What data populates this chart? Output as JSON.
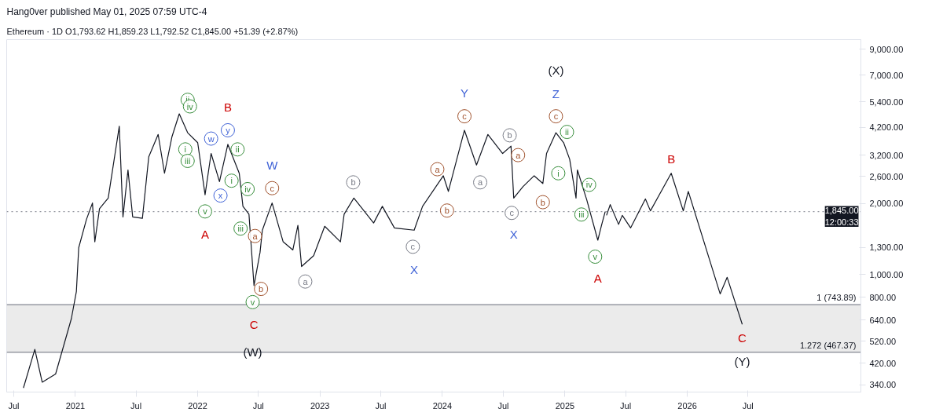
{
  "chart_data": {
    "type": "line",
    "title": "Hang0ver published May 01, 2025 07:59 UTC-4",
    "subtitle": "Ethereum · 1D  O1,793.62  H1,859.23  L1,792.52  C1,845.00  +51.39 (+2.87%)",
    "series": [
      {
        "color": "#131722",
        "x": [
          "2020-07-30",
          "2020-09-02",
          "2020-09-24",
          "2020-11-03",
          "2020-12-20",
          "2021-01-04",
          "2021-01-11",
          "2021-02-03",
          "2021-02-21",
          "2021-02-28",
          "2021-03-14",
          "2021-04-09",
          "2021-05-12",
          "2021-05-23",
          "2021-06-07",
          "2021-06-21",
          "2021-07-20",
          "2021-08-08",
          "2021-09-05",
          "2021-09-24",
          "2021-10-16",
          "2021-11-07",
          "2021-12-02",
          "2022-01-01",
          "2022-01-23",
          "2022-02-10",
          "2022-03-07",
          "2022-04-01",
          "2022-05-05",
          "2022-05-16",
          "2022-06-03",
          "2022-06-18",
          "2022-07-06",
          "2022-07-13",
          "2022-08-11",
          "2022-09-13",
          "2022-10-12",
          "2022-10-27",
          "2022-11-07",
          "2022-12-13",
          "2023-01-15",
          "2023-03-03",
          "2023-03-14",
          "2023-04-12",
          "2023-06-10",
          "2023-07-06",
          "2023-08-11",
          "2023-10-09",
          "2023-11-03",
          "2024-01-04",
          "2024-01-19",
          "2024-03-07",
          "2024-04-12",
          "2024-05-16",
          "2024-06-29",
          "2024-07-24",
          "2024-08-01",
          "2024-08-29",
          "2024-10-01",
          "2024-10-27",
          "2024-11-07",
          "2024-12-05",
          "2024-12-28",
          "2025-01-15",
          "2025-02-03",
          "2025-02-07",
          "2025-03-07",
          "2025-04-09",
          "2025-04-20",
          "2025-05-01"
        ],
        "values": [
          330,
          481,
          349,
          378,
          649,
          847,
          1299,
          1710,
          2008,
          1375,
          1900,
          2108,
          4250,
          1753,
          2773,
          1753,
          1730,
          3155,
          3923,
          2685,
          3827,
          4798,
          3990,
          3620,
          2177,
          3258,
          2476,
          3561,
          2685,
          1944,
          1800,
          897,
          1239,
          1540,
          2008,
          1375,
          1270,
          1614,
          1080,
          1200,
          1600,
          1375,
          1800,
          2108,
          1652,
          1944,
          1575,
          1540,
          1944,
          2620,
          2250,
          4086,
          2910,
          3923,
          3258,
          3500,
          2108,
          2360,
          2620,
          2430,
          3258,
          3990,
          3620,
          3080,
          2108,
          2773,
          2070,
          1397,
          1614,
          1845
        ]
      },
      {
        "color": "#131722",
        "x": [
          "2025-05-05",
          "2025-05-16",
          "2025-06-10",
          "2025-06-21",
          "2025-07-16",
          "2025-08-29",
          "2025-09-13",
          "2025-11-14",
          "2025-12-20",
          "2026-01-04",
          "2026-04-09",
          "2026-04-30",
          "2026-06-14"
        ],
        "values": [
          1780,
          1977,
          1630,
          1780,
          1575,
          2090,
          1860,
          2685,
          1860,
          2250,
          827,
          972,
          614
        ]
      }
    ],
    "xlim": [
      "2020-06-10",
      "2027-06-03"
    ],
    "xticks": [
      {
        "value": "2020-07-01",
        "label": "Jul"
      },
      {
        "value": "2021-01-01",
        "label": "2021"
      },
      {
        "value": "2021-07-01",
        "label": "Jul"
      },
      {
        "value": "2022-01-01",
        "label": "2022"
      },
      {
        "value": "2022-07-01",
        "label": "Jul"
      },
      {
        "value": "2023-01-01",
        "label": "2023"
      },
      {
        "value": "2023-07-01",
        "label": "Jul"
      },
      {
        "value": "2024-01-01",
        "label": "2024"
      },
      {
        "value": "2024-07-01",
        "label": "Jul"
      },
      {
        "value": "2025-01-01",
        "label": "2025"
      },
      {
        "value": "2025-07-01",
        "label": "Jul"
      },
      {
        "value": "2026-01-01",
        "label": "2026"
      },
      {
        "value": "2026-07-01",
        "label": "Jul"
      }
    ],
    "ylim": [
      317,
      9900
    ],
    "yticks": [
      {
        "value": 340,
        "label": "340.00"
      },
      {
        "value": 420,
        "label": "420.00"
      },
      {
        "value": 520,
        "label": "520.00"
      },
      {
        "value": 640,
        "label": "640.00"
      },
      {
        "value": 800,
        "label": "800.00"
      },
      {
        "value": 1000,
        "label": "1,000.00"
      },
      {
        "value": 1300,
        "label": "1,300.00"
      },
      {
        "value": 2000,
        "label": "2,000.00"
      },
      {
        "value": 2600,
        "label": "2,600.00"
      },
      {
        "value": 3200,
        "label": "3,200.00"
      },
      {
        "value": 4200,
        "label": "4,200.00"
      },
      {
        "value": 5400,
        "label": "5,400.00"
      },
      {
        "value": 7000,
        "label": "7,000.00"
      },
      {
        "value": 9000,
        "label": "9,000.00"
      }
    ],
    "log": "y",
    "line_style": "solid",
    "marker": "none",
    "ref_lines": [
      {
        "axis": "y",
        "value": 1845,
        "label": "1,845.00",
        "color": "#787b86",
        "line_style": "dotted"
      },
      {
        "axis": "y",
        "value": 743.89,
        "label": "1 (743.89)",
        "color": "#9598a1",
        "line_style": "solid"
      },
      {
        "axis": "y",
        "value": 467.37,
        "label": "1.272 (467.37)",
        "color": "#9598a1",
        "line_style": "solid"
      }
    ],
    "bands": [
      {
        "axis": "y",
        "from": 467.37,
        "to": 743.89,
        "color": "#ebebeb"
      }
    ],
    "annotations": [
      "12:00:33",
      {
        "text": "ii",
        "x": "2021-12-02",
        "y": 5500
      },
      {
        "text": "iv",
        "x": "2021-12-09",
        "y": 5160
      },
      {
        "text": "B",
        "x": "2022-04-01",
        "y": 3561
      },
      {
        "text": "w",
        "x": "2022-02-10",
        "y": 3767
      },
      {
        "text": "y",
        "x": "2022-04-01",
        "y": 4086
      },
      {
        "text": "i",
        "x": "2021-11-25",
        "y": 3390
      },
      {
        "text": "iii",
        "x": "2021-12-02",
        "y": 3030
      },
      {
        "text": "ii",
        "x": "2022-04-30",
        "y": 3390
      },
      {
        "text": "i",
        "x": "2022-04-12",
        "y": 2497
      },
      {
        "text": "x",
        "x": "2022-03-10",
        "y": 2160
      },
      {
        "text": "iv",
        "x": "2022-05-30",
        "y": 2300
      },
      {
        "text": "W",
        "x": "2022-08-11",
        "y": 2008
      },
      {
        "text": "c",
        "x": "2022-08-11",
        "y": 2322
      },
      {
        "text": "v",
        "x": "2022-01-23",
        "y": 1850
      },
      {
        "text": "A",
        "x": "2022-01-23",
        "y": 2177
      },
      {
        "text": "iii",
        "x": "2022-05-09",
        "y": 1565
      },
      {
        "text": "a",
        "x": "2022-06-21",
        "y": 1455
      },
      {
        "text": "b",
        "x": "2022-07-09",
        "y": 868
      },
      {
        "text": "v",
        "x": "2022-06-14",
        "y": 763
      },
      {
        "text": "C",
        "x": "2022-06-18",
        "y": 897
      },
      {
        "text": "(W)",
        "x": "2022-06-14",
        "y": 470
      },
      {
        "text": "a",
        "x": "2022-11-18",
        "y": 933
      },
      {
        "text": "b",
        "x": "2023-04-10",
        "y": 2457
      },
      {
        "text": "c",
        "x": "2023-10-05",
        "y": 1310
      },
      {
        "text": "X",
        "x": "2023-10-09",
        "y": 1540
      },
      {
        "text": "a",
        "x": "2023-12-17",
        "y": 2793
      },
      {
        "text": "b",
        "x": "2024-01-15",
        "y": 1866
      },
      {
        "text": "Y",
        "x": "2024-03-07",
        "y": 4086
      },
      {
        "text": "c",
        "x": "2024-03-07",
        "y": 4684
      },
      {
        "text": "a",
        "x": "2024-04-23",
        "y": 2457
      },
      {
        "text": "b",
        "x": "2024-07-20",
        "y": 3890
      },
      {
        "text": "a",
        "x": "2024-08-14",
        "y": 3206
      },
      {
        "text": "c",
        "x": "2024-07-26",
        "y": 1823
      },
      {
        "text": "X",
        "x": "2024-08-01",
        "y": 2108
      },
      {
        "text": "b",
        "x": "2024-10-27",
        "y": 2025
      },
      "(X)",
      {
        "text": "Z",
        "x": "2024-12-05",
        "y": 3990
      },
      {
        "text": "c",
        "x": "2024-12-05",
        "y": 4684
      },
      {
        "text": "ii",
        "x": "2025-01-07",
        "y": 4020
      },
      {
        "text": "i",
        "x": "2024-12-12",
        "y": 2685
      },
      {
        "text": "iv",
        "x": "2025-03-14",
        "y": 2398
      },
      {
        "text": "iii",
        "x": "2025-02-19",
        "y": 1795
      },
      {
        "text": "v",
        "x": "2025-04-01",
        "y": 1189
      },
      {
        "text": "A",
        "x": "2025-04-09",
        "y": 1397
      },
      {
        "text": "B",
        "x": "2025-11-14",
        "y": 2685
      },
      {
        "text": "C",
        "x": "2026-06-14",
        "y": 614
      },
      {
        "text": "(Y)",
        "x": "2026-06-14",
        "y": 614
      }
    ]
  }
}
